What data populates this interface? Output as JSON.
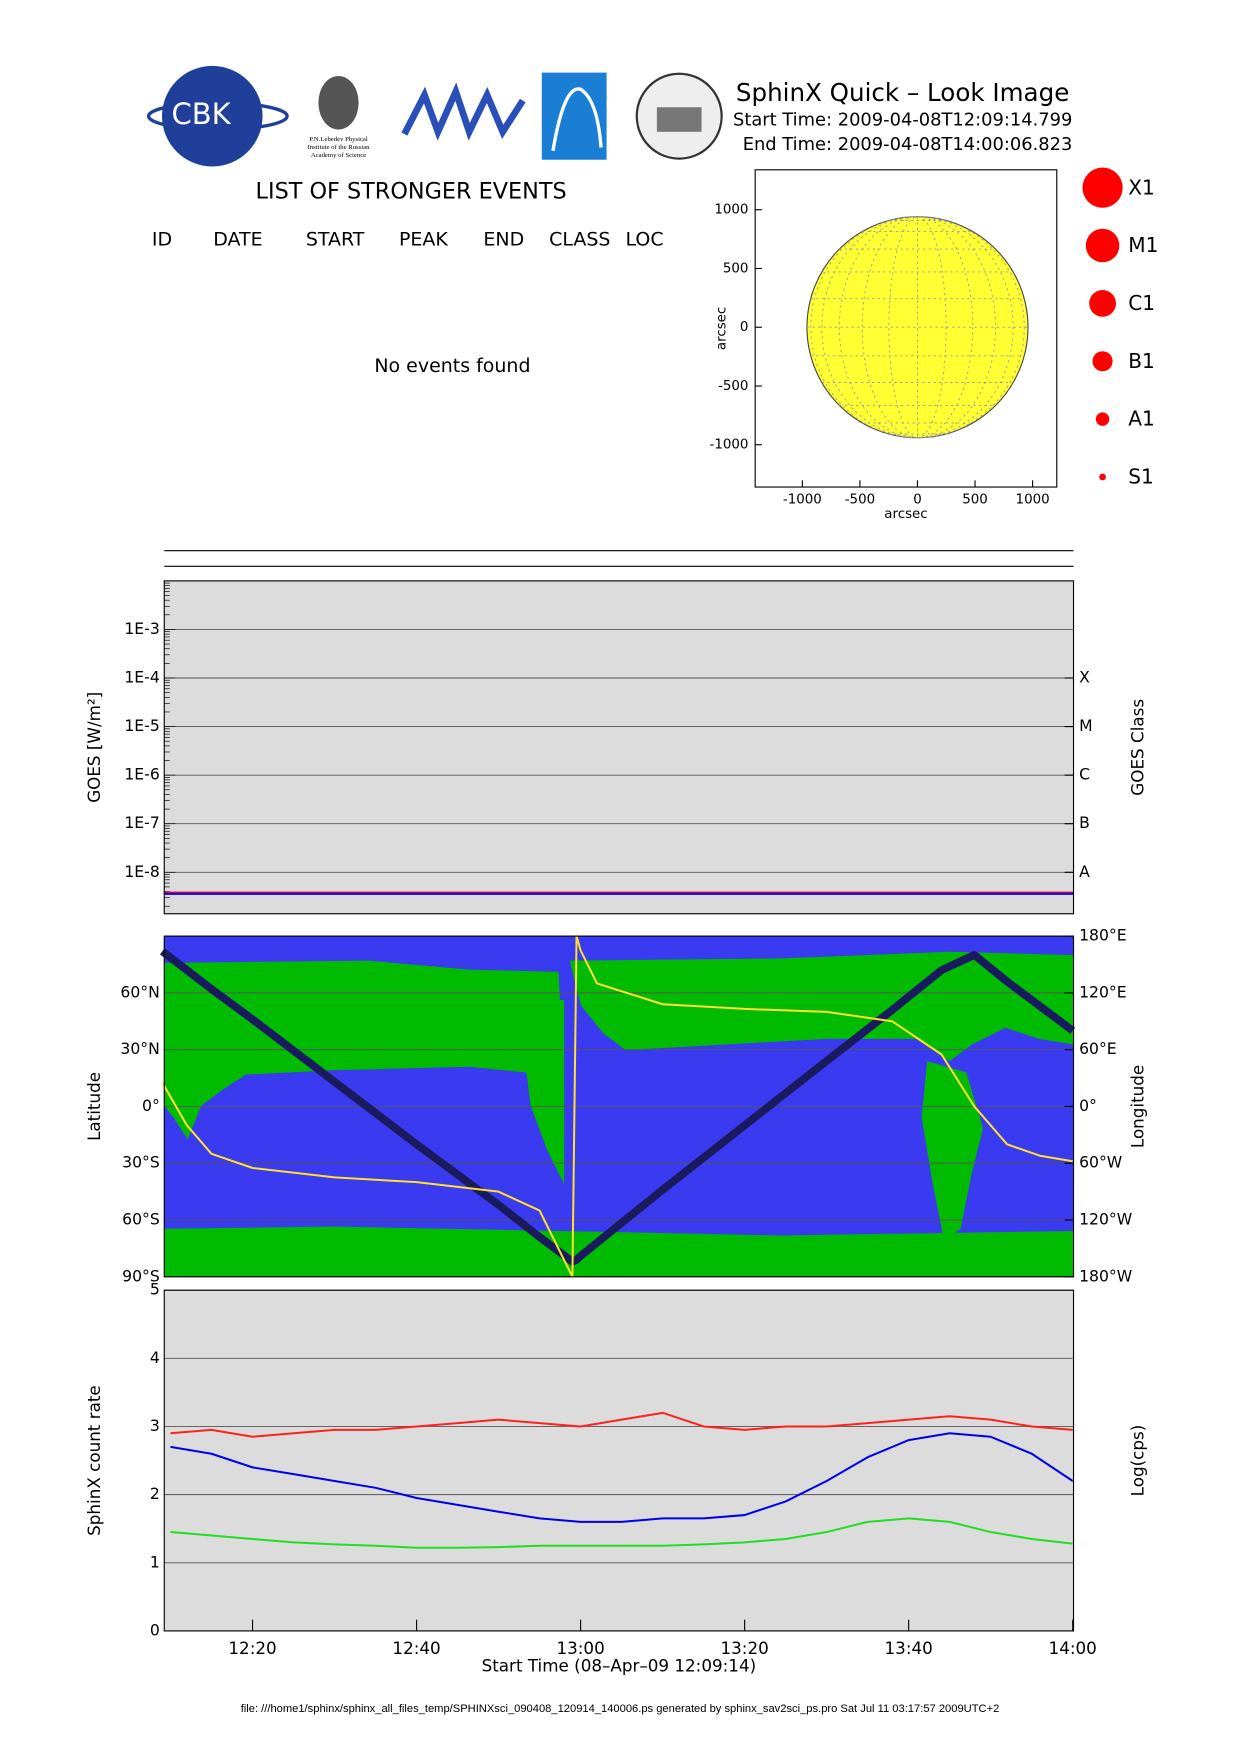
{
  "header": {
    "logo_text": "CBK",
    "institute": [
      "P.N.Lebedev Physical",
      "Institute of the Russian",
      "Academy of Science"
    ],
    "title": "SphinX Quick – Look Image",
    "start_time": "Start Time: 2009-04-08T12:09:14.799",
    "end_time": "End Time: 2009-04-08T14:00:06.823"
  },
  "events": {
    "title": "LIST OF STRONGER EVENTS",
    "columns": [
      "ID",
      "DATE",
      "START",
      "PEAK",
      "END",
      "CLASS",
      "LOC"
    ],
    "message": "No events found"
  },
  "legend": {
    "items": [
      "X1",
      "M1",
      "C1",
      "B1",
      "A1",
      "S1"
    ],
    "color": "#ff0000"
  },
  "chart_data": [
    {
      "type": "disk",
      "xlabel": "arcsec",
      "ylabel": "arcsec",
      "xlim": [
        -1410,
        1210
      ],
      "ylim": [
        -1360,
        1340
      ],
      "xticks": [
        -1000,
        -500,
        0,
        500,
        1000
      ],
      "yticks": [
        -1000,
        -500,
        0,
        500,
        1000
      ],
      "disk_radius": 960,
      "color": "#ffff33"
    },
    {
      "type": "line",
      "log_y": true,
      "ylabel": "GOES [W/m²]",
      "y2label": "GOES Class",
      "xlim": [
        "12:09:14",
        "14:00:06"
      ],
      "ylim": [
        1.4e-09,
        0.01
      ],
      "yticks": [
        {
          "value": 1e-08,
          "label": "1E-8"
        },
        {
          "value": 1e-07,
          "label": "1E-7"
        },
        {
          "value": 1e-06,
          "label": "1E-6"
        },
        {
          "value": 1e-05,
          "label": "1E-5"
        },
        {
          "value": 0.0001,
          "label": "1E-4"
        },
        {
          "value": 0.001,
          "label": "1E-3"
        }
      ],
      "y2lim": [
        1.4e-09,
        0.01
      ],
      "y2ticks": [
        {
          "value": 1e-08,
          "label": "A"
        },
        {
          "value": 1e-07,
          "label": "B"
        },
        {
          "value": 1e-06,
          "label": "C"
        },
        {
          "value": 1e-05,
          "label": "M"
        },
        {
          "value": 0.0001,
          "label": "X"
        }
      ],
      "grid": true,
      "x": [
        "12:09:14",
        "12:30",
        "12:50",
        "13:10",
        "13:30",
        "13:50",
        "14:00:06"
      ],
      "series": [
        {
          "color": "#ff0000",
          "values": [
            3.8e-09,
            3.8e-09,
            3.8e-09,
            3.8e-09,
            3.8e-09,
            3.8e-09,
            3.8e-09
          ]
        },
        {
          "color": "#0000ff",
          "values": [
            3.6e-09,
            3.6e-09,
            3.6e-09,
            3.6e-09,
            3.6e-09,
            3.6e-09,
            3.6e-09
          ]
        }
      ]
    },
    {
      "type": "line",
      "ylabel": "Latitude",
      "y2label": "Longitude",
      "xlim": [
        "12:09:14",
        "14:00:06"
      ],
      "ylim": [
        -90,
        90
      ],
      "yticks": [
        {
          "value": -90,
          "label": "90°S"
        },
        {
          "value": -60,
          "label": "60°S"
        },
        {
          "value": -30,
          "label": "30°S"
        },
        {
          "value": 0,
          "label": "0°"
        },
        {
          "value": 30,
          "label": "30°N"
        },
        {
          "value": 60,
          "label": "60°N"
        }
      ],
      "y2lim": [
        -180,
        180
      ],
      "y2ticks": [
        {
          "value": -180,
          "label": "180°W"
        },
        {
          "value": -120,
          "label": "120°W"
        },
        {
          "value": -60,
          "label": "60°W"
        },
        {
          "value": 0,
          "label": "0°"
        },
        {
          "value": 60,
          "label": "60°E"
        },
        {
          "value": 120,
          "label": "120°E"
        },
        {
          "value": 180,
          "label": "180°E"
        }
      ],
      "grid": true,
      "x": [
        "12:09",
        "12:12",
        "12:15",
        "12:20",
        "12:30",
        "12:40",
        "12:50",
        "12:55",
        "12:59",
        "12:59:30",
        "13:00",
        "13:02",
        "13:10",
        "13:20",
        "13:30",
        "13:38",
        "13:44",
        "13:48",
        "13:52",
        "13:56",
        "14:00"
      ],
      "series": [
        {
          "color": "#1a1a5e",
          "values": [
            82,
            72,
            62,
            46,
            13,
            -20,
            -52,
            -69,
            -82,
            -81,
            -79,
            -72,
            -44,
            -10,
            24,
            51,
            72,
            80,
            66,
            53,
            40
          ]
        },
        {
          "color": "#ffe030",
          "axis": "y2",
          "values": [
            25,
            -20,
            -50,
            -65,
            -75,
            -80,
            -90,
            -110,
            -180,
            180,
            165,
            130,
            108,
            103,
            100,
            90,
            55,
            0,
            -40,
            -52,
            -58
          ]
        }
      ]
    },
    {
      "type": "line",
      "ylabel": "SphinX count rate",
      "y2label": "Log(cps)",
      "xlabel": "Start Time (08–Apr–09 12:09:14)",
      "xlim": [
        "12:09:14",
        "14:00:06"
      ],
      "ylim": [
        0,
        5
      ],
      "yticks": [
        0,
        1,
        2,
        3,
        4,
        5
      ],
      "xticks": [
        "12:20",
        "12:40",
        "13:00",
        "13:20",
        "13:40",
        "14:00"
      ],
      "grid": true,
      "x": [
        "12:10",
        "12:15",
        "12:20",
        "12:25",
        "12:30",
        "12:35",
        "12:40",
        "12:45",
        "12:50",
        "12:55",
        "13:00",
        "13:05",
        "13:10",
        "13:15",
        "13:20",
        "13:25",
        "13:30",
        "13:35",
        "13:40",
        "13:45",
        "13:50",
        "13:55",
        "14:00"
      ],
      "series": [
        {
          "color": "#ff2020",
          "values": [
            2.9,
            2.95,
            2.85,
            2.9,
            2.95,
            2.95,
            3.0,
            3.05,
            3.1,
            3.05,
            3.0,
            3.1,
            3.2,
            3.0,
            2.95,
            3.0,
            3.0,
            3.05,
            3.1,
            3.15,
            3.1,
            3.0,
            2.95
          ]
        },
        {
          "color": "#0000ee",
          "values": [
            2.7,
            2.6,
            2.4,
            2.3,
            2.2,
            2.1,
            1.95,
            1.85,
            1.75,
            1.65,
            1.6,
            1.6,
            1.65,
            1.65,
            1.7,
            1.9,
            2.2,
            2.55,
            2.8,
            2.9,
            2.85,
            2.6,
            2.2
          ]
        },
        {
          "color": "#22dd22",
          "values": [
            1.45,
            1.4,
            1.35,
            1.3,
            1.27,
            1.25,
            1.22,
            1.22,
            1.23,
            1.25,
            1.25,
            1.25,
            1.25,
            1.27,
            1.3,
            1.35,
            1.45,
            1.6,
            1.65,
            1.6,
            1.45,
            1.35,
            1.28
          ]
        }
      ]
    }
  ],
  "footer": "file: ///home1/sphinx/sphinx_all_files_temp/SPHINXsci_090408_120914_140006.ps generated by sphinx_sav2sci_ps.pro Sat Jul 11 03:17:57 2009UTC+2"
}
